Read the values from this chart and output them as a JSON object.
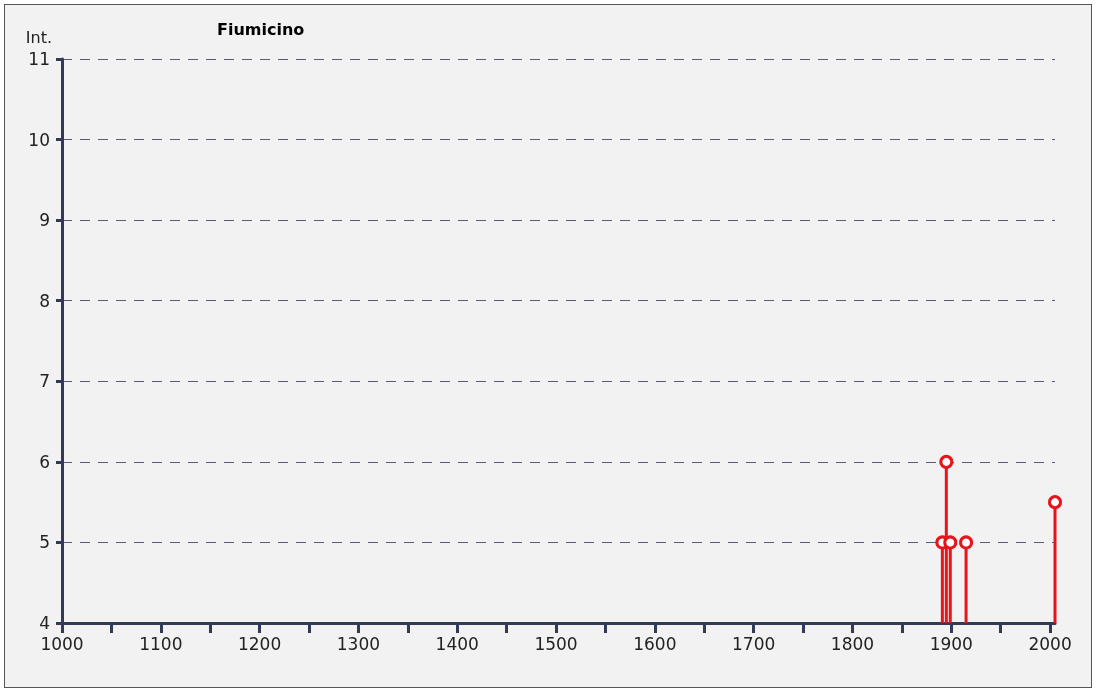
{
  "chart_data": {
    "type": "lollipop",
    "title": "Fiumicino",
    "ylabel": "Int.",
    "x": [
      1891,
      1895,
      1899,
      1915,
      2005
    ],
    "values": [
      5,
      6,
      5,
      5,
      5.5
    ],
    "color": "#e8141c",
    "xlim": [
      1000,
      2005
    ],
    "xticks": [
      1000,
      {
        "value": 1050,
        "label": null
      },
      1100,
      {
        "value": 1150,
        "label": null
      },
      1200,
      {
        "value": 1250,
        "label": null
      },
      1300,
      {
        "value": 1350,
        "label": null
      },
      1400,
      {
        "value": 1450,
        "label": null
      },
      1500,
      {
        "value": 1550,
        "label": null
      },
      1600,
      {
        "value": 1650,
        "label": null
      },
      1700,
      {
        "value": 1750,
        "label": null
      },
      1800,
      {
        "value": 1850,
        "label": null
      },
      1900,
      {
        "value": 1950,
        "label": null
      },
      2000
    ],
    "ylim": [
      4,
      11
    ],
    "yticks": [
      4,
      5,
      6,
      7,
      8,
      9,
      10,
      11
    ],
    "grid": "y",
    "marker": "circle",
    "line_style": "solid"
  }
}
